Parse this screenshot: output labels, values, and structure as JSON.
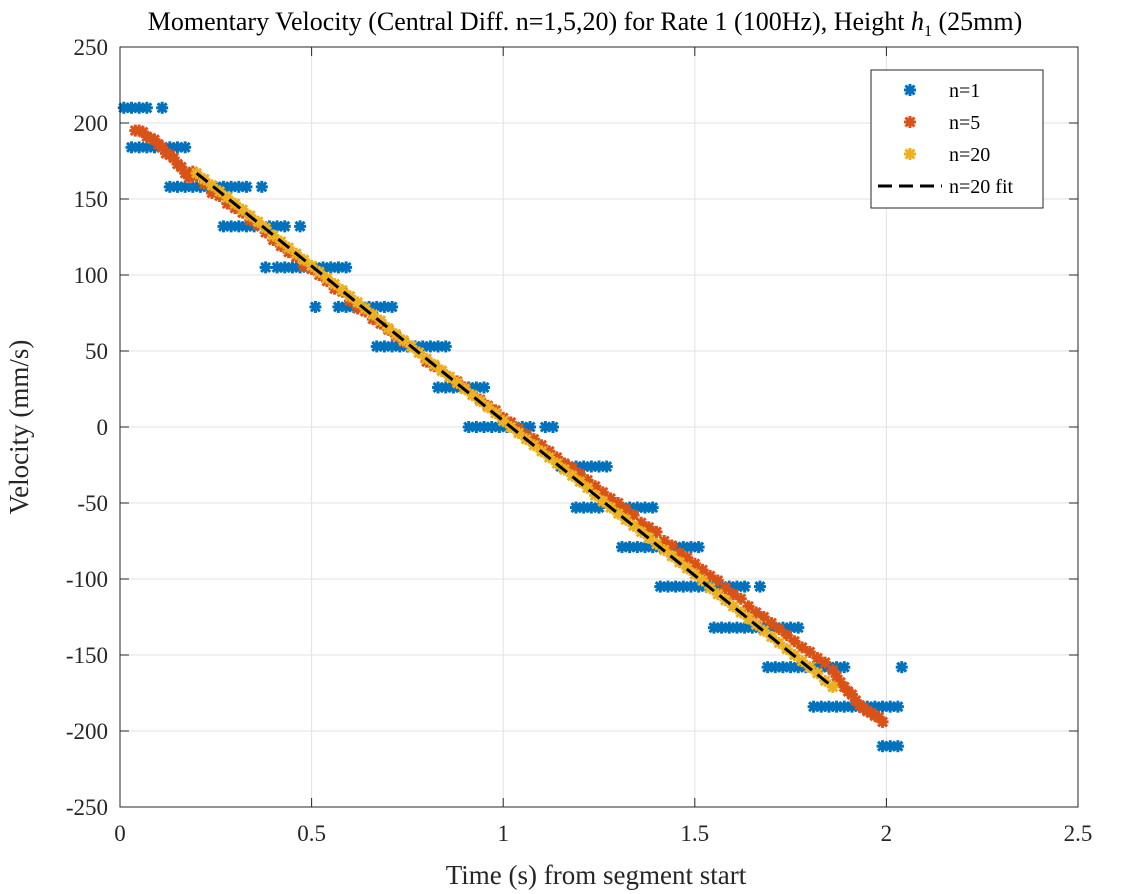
{
  "chart_data": {
    "type": "scatter",
    "title_prefix": "Momentary Velocity (Central Diff. n=1,5,20) for Rate 1 (100Hz), Height ",
    "title_var": "h",
    "title_sub": "1",
    "title_suffix": " (25mm)",
    "xlabel": "Time (s) from segment start",
    "ylabel": "Velocity (mm/s)",
    "xlim": [
      0,
      2.5
    ],
    "ylim": [
      -250,
      250
    ],
    "grid": true,
    "legend_position": "top-right",
    "x_ticks": [
      {
        "v": 0,
        "label": "0"
      },
      {
        "v": 0.5,
        "label": "0.5"
      },
      {
        "v": 1,
        "label": "1"
      },
      {
        "v": 1.5,
        "label": "1.5"
      },
      {
        "v": 2,
        "label": "2"
      },
      {
        "v": 2.5,
        "label": "2.5"
      }
    ],
    "y_ticks": [
      {
        "v": 250,
        "label": "250"
      },
      {
        "v": 200,
        "label": "200"
      },
      {
        "v": 150,
        "label": "150"
      },
      {
        "v": 100,
        "label": "100"
      },
      {
        "v": 50,
        "label": "50"
      },
      {
        "v": 0,
        "label": "0"
      },
      {
        "v": -50,
        "label": "-50"
      },
      {
        "v": -100,
        "label": "-100"
      },
      {
        "v": -150,
        "label": "-150"
      },
      {
        "v": -200,
        "label": "-200"
      },
      {
        "v": -250,
        "label": "-250"
      }
    ],
    "series": [
      {
        "name": "n=1",
        "color": "#0072BD",
        "marker": "asterisk",
        "x": [
          0.01,
          0.03,
          0.05,
          0.07,
          0.11,
          0.03,
          0.05,
          0.07,
          0.09,
          0.11,
          0.13,
          0.15,
          0.17,
          0.13,
          0.15,
          0.17,
          0.19,
          0.21,
          0.23,
          0.25,
          0.27,
          0.29,
          0.31,
          0.33,
          0.37,
          0.27,
          0.29,
          0.31,
          0.33,
          0.35,
          0.39,
          0.41,
          0.43,
          0.47,
          0.38,
          0.41,
          0.43,
          0.45,
          0.47,
          0.49,
          0.51,
          0.53,
          0.55,
          0.57,
          0.59,
          0.51,
          0.57,
          0.59,
          0.61,
          0.63,
          0.65,
          0.67,
          0.69,
          0.71,
          0.67,
          0.69,
          0.71,
          0.73,
          0.75,
          0.77,
          0.79,
          0.81,
          0.83,
          0.85,
          0.83,
          0.85,
          0.87,
          0.89,
          0.91,
          0.93,
          0.95,
          0.91,
          0.93,
          0.95,
          0.97,
          0.99,
          1.01,
          1.03,
          1.05,
          1.07,
          1.11,
          1.13,
          1.15,
          1.17,
          1.19,
          1.21,
          1.23,
          1.25,
          1.27,
          1.19,
          1.21,
          1.23,
          1.25,
          1.29,
          1.31,
          1.33,
          1.35,
          1.37,
          1.39,
          1.31,
          1.33,
          1.35,
          1.37,
          1.39,
          1.41,
          1.43,
          1.45,
          1.47,
          1.49,
          1.51,
          1.41,
          1.43,
          1.45,
          1.47,
          1.49,
          1.51,
          1.53,
          1.55,
          1.57,
          1.59,
          1.61,
          1.63,
          1.67,
          1.55,
          1.57,
          1.59,
          1.61,
          1.63,
          1.65,
          1.67,
          1.69,
          1.71,
          1.73,
          1.75,
          1.77,
          1.69,
          1.71,
          1.73,
          1.75,
          1.77,
          1.79,
          1.81,
          1.83,
          1.85,
          1.87,
          1.89,
          1.81,
          1.83,
          1.85,
          1.87,
          1.89,
          1.91,
          1.93,
          1.95,
          1.97,
          1.99,
          2.01,
          2.03,
          1.99,
          2.01,
          2.03,
          2.04
        ],
        "y": [
          210,
          210,
          210,
          210,
          210,
          184,
          184,
          184,
          184,
          184,
          184,
          184,
          184,
          158,
          158,
          158,
          158,
          158,
          158,
          158,
          158,
          158,
          158,
          158,
          158,
          132,
          132,
          132,
          132,
          132,
          132,
          132,
          132,
          132,
          105,
          105,
          105,
          105,
          105,
          105,
          105,
          105,
          105,
          105,
          105,
          79,
          79,
          79,
          79,
          79,
          79,
          79,
          79,
          79,
          53,
          53,
          53,
          53,
          53,
          53,
          53,
          53,
          53,
          53,
          26,
          26,
          26,
          26,
          26,
          26,
          26,
          0,
          0,
          0,
          0,
          0,
          0,
          0,
          0,
          0,
          0,
          0,
          -26,
          -26,
          -26,
          -26,
          -26,
          -26,
          -26,
          -53,
          -53,
          -53,
          -53,
          -53,
          -53,
          -53,
          -53,
          -53,
          -53,
          -79,
          -79,
          -79,
          -79,
          -79,
          -79,
          -79,
          -79,
          -79,
          -79,
          -79,
          -105,
          -105,
          -105,
          -105,
          -105,
          -105,
          -105,
          -105,
          -105,
          -105,
          -105,
          -105,
          -105,
          -132,
          -132,
          -132,
          -132,
          -132,
          -132,
          -132,
          -132,
          -132,
          -132,
          -132,
          -132,
          -158,
          -158,
          -158,
          -158,
          -158,
          -158,
          -158,
          -158,
          -158,
          -158,
          -158,
          -184,
          -184,
          -184,
          -184,
          -184,
          -184,
          -184,
          -184,
          -184,
          -184,
          -184,
          -184,
          -210,
          -210,
          -210,
          -158
        ]
      },
      {
        "name": "n=5",
        "color": "#D95319",
        "marker": "asterisk",
        "x": [
          0.04,
          0.05,
          0.06,
          0.07,
          0.08,
          0.09,
          0.1,
          0.11,
          0.12,
          0.13,
          0.14,
          0.15,
          0.16,
          0.17,
          0.18,
          0.19,
          0.2,
          0.22,
          0.24,
          0.26,
          0.28,
          0.3,
          0.32,
          0.34,
          0.36,
          0.38,
          0.4,
          0.42,
          0.44,
          0.46,
          0.48,
          0.5,
          0.52,
          0.54,
          0.56,
          0.58,
          0.6,
          0.62,
          0.64,
          0.66,
          0.68,
          0.7,
          0.72,
          0.74,
          0.76,
          0.78,
          0.8,
          0.82,
          0.84,
          0.86,
          0.88,
          0.9,
          0.92,
          0.94,
          0.96,
          0.98,
          1,
          1.02,
          1.04,
          1.06,
          1.08,
          1.1,
          1.12,
          1.14,
          1.16,
          1.18,
          1.2,
          1.22,
          1.24,
          1.26,
          1.28,
          1.3,
          1.32,
          1.34,
          1.36,
          1.38,
          1.4,
          1.42,
          1.44,
          1.46,
          1.48,
          1.5,
          1.52,
          1.54,
          1.56,
          1.58,
          1.6,
          1.62,
          1.64,
          1.66,
          1.68,
          1.7,
          1.72,
          1.74,
          1.76,
          1.78,
          1.8,
          1.82,
          1.84,
          1.86,
          1.87,
          1.88,
          1.89,
          1.9,
          1.91,
          1.92,
          1.93,
          1.94,
          1.95,
          1.96,
          1.97,
          1.98,
          1.99
        ],
        "y": [
          195,
          195,
          194,
          191,
          190,
          189,
          186,
          184,
          180,
          179,
          177,
          173,
          171,
          167,
          164,
          168,
          165,
          160,
          154,
          152,
          147,
          144,
          141,
          136,
          133,
          128,
          123,
          119,
          115,
          112,
          106,
          104,
          100,
          96,
          91,
          89,
          83,
          78,
          76,
          71,
          68,
          64,
          60,
          56,
          53,
          49,
          43,
          40,
          37,
          33,
          30,
          26,
          21,
          18,
          14,
          11,
          6,
          3,
          -1,
          -5,
          -8,
          -12,
          -16,
          -20,
          -24,
          -27,
          -31,
          -35,
          -39,
          -43,
          -47,
          -50,
          -54,
          -58,
          -63,
          -66,
          -69,
          -75,
          -78,
          -83,
          -86,
          -90,
          -94,
          -98,
          -101,
          -106,
          -110,
          -113,
          -118,
          -122,
          -125,
          -129,
          -133,
          -137,
          -141,
          -145,
          -148,
          -152,
          -155,
          -160,
          -164,
          -168,
          -171,
          -174,
          -176,
          -180,
          -183,
          -185,
          -187,
          -188,
          -190,
          -191,
          -194
        ]
      },
      {
        "name": "n=20",
        "color": "#EDB120",
        "marker": "asterisk",
        "x": [
          0.2,
          0.22,
          0.24,
          0.26,
          0.28,
          0.3,
          0.32,
          0.34,
          0.36,
          0.38,
          0.4,
          0.42,
          0.44,
          0.46,
          0.48,
          0.5,
          0.52,
          0.54,
          0.56,
          0.58,
          0.6,
          0.62,
          0.64,
          0.66,
          0.68,
          0.7,
          0.72,
          0.74,
          0.76,
          0.78,
          0.8,
          0.82,
          0.84,
          0.86,
          0.88,
          0.9,
          0.92,
          0.94,
          0.96,
          0.98,
          1,
          1.02,
          1.04,
          1.06,
          1.08,
          1.1,
          1.12,
          1.14,
          1.16,
          1.18,
          1.2,
          1.22,
          1.24,
          1.26,
          1.28,
          1.3,
          1.32,
          1.34,
          1.36,
          1.38,
          1.4,
          1.42,
          1.44,
          1.46,
          1.48,
          1.5,
          1.52,
          1.54,
          1.56,
          1.58,
          1.6,
          1.62,
          1.64,
          1.66,
          1.68,
          1.7,
          1.72,
          1.74,
          1.76,
          1.78,
          1.8,
          1.82,
          1.84,
          1.86
        ],
        "y": [
          167,
          163,
          159,
          155,
          151,
          147,
          143,
          139,
          135,
          131,
          126,
          122,
          118,
          114,
          110,
          106,
          102,
          98,
          94,
          90,
          86,
          82,
          78,
          74,
          70,
          65,
          61,
          57,
          53,
          49,
          45,
          41,
          37,
          33,
          29,
          25,
          21,
          17,
          13,
          9,
          4,
          0,
          -4,
          -8,
          -12,
          -16,
          -20,
          -24,
          -28,
          -32,
          -36,
          -40,
          -45,
          -49,
          -53,
          -57,
          -61,
          -65,
          -69,
          -73,
          -77,
          -81,
          -85,
          -89,
          -93,
          -97,
          -101,
          -106,
          -110,
          -114,
          -118,
          -122,
          -126,
          -130,
          -134,
          -138,
          -142,
          -146,
          -150,
          -154,
          -158,
          -162,
          -167,
          -171
        ]
      }
    ],
    "fit": {
      "name": "n=20 fit",
      "color": "#000000",
      "x": [
        0.2,
        1.86
      ],
      "y": [
        167,
        -171
      ]
    }
  }
}
